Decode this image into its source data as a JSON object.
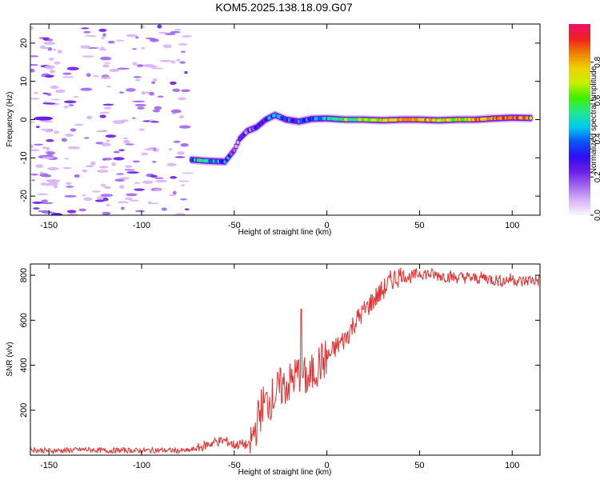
{
  "title": "KOM5.2025.138.18.09.G07",
  "chart_data": [
    {
      "type": "heatmap",
      "xlabel": "Height of straight line (km)",
      "ylabel": "Frequency (Hz)",
      "xlim": [
        -160,
        115
      ],
      "ylim": [
        -25,
        25
      ],
      "xticks": [
        -150,
        -100,
        -50,
        0,
        50,
        100
      ],
      "yticks": [
        -20,
        -10,
        0,
        10,
        20
      ],
      "colorbar": {
        "label": "Normalized spectral amplitude",
        "range": [
          0,
          1
        ],
        "ticks": [
          0.0,
          0.2,
          0.4,
          0.6,
          0.8
        ],
        "tick_labels": [
          "0.0",
          "0.2",
          "0.4",
          "0.6",
          "0.8"
        ],
        "colors": [
          "#f7f7ff",
          "#d9b3f7",
          "#a066f0",
          "#6b1ee6",
          "#2a0ff0",
          "#0a55f5",
          "#00ccf0",
          "#20e890",
          "#40f000",
          "#c8f000",
          "#f0d000",
          "#f08000",
          "#f02020",
          "#f0106a"
        ]
      },
      "ridge": {
        "description_points": [
          {
            "x": -73,
            "y": -10.5,
            "amp": 0.45
          },
          {
            "x": -65,
            "y": -10.8,
            "amp": 0.5
          },
          {
            "x": -55,
            "y": -11,
            "amp": 0.4
          },
          {
            "x": -50,
            "y": -8,
            "amp": 0.2
          },
          {
            "x": -47,
            "y": -5,
            "amp": 0.15
          },
          {
            "x": -43,
            "y": -3,
            "amp": 0.2
          },
          {
            "x": -38,
            "y": -2,
            "amp": 0.25
          },
          {
            "x": -33,
            "y": 0,
            "amp": 0.3
          },
          {
            "x": -28,
            "y": 1.2,
            "amp": 0.4
          },
          {
            "x": -22,
            "y": 0,
            "amp": 0.35
          },
          {
            "x": -15,
            "y": -0.5,
            "amp": 0.35
          },
          {
            "x": -8,
            "y": 0.2,
            "amp": 0.4
          },
          {
            "x": 0,
            "y": 0.3,
            "amp": 0.5
          },
          {
            "x": 10,
            "y": 0,
            "amp": 0.55
          },
          {
            "x": 20,
            "y": 0,
            "amp": 0.7
          },
          {
            "x": 30,
            "y": -0.2,
            "amp": 0.75
          },
          {
            "x": 40,
            "y": 0,
            "amp": 0.8
          },
          {
            "x": 50,
            "y": 0,
            "amp": 0.8
          },
          {
            "x": 60,
            "y": -0.2,
            "amp": 0.75
          },
          {
            "x": 70,
            "y": 0,
            "amp": 0.7
          },
          {
            "x": 80,
            "y": 0,
            "amp": 0.8
          },
          {
            "x": 90,
            "y": 0.3,
            "amp": 0.85
          },
          {
            "x": 100,
            "y": 0.5,
            "amp": 0.9
          },
          {
            "x": 110,
            "y": 0.4,
            "amp": 0.85
          }
        ]
      },
      "noise_region_x": [
        -160,
        -75
      ]
    },
    {
      "type": "line",
      "xlabel": "Height of straight line (km)",
      "ylabel": "SNR (v/v)",
      "xlim": [
        -160,
        115
      ],
      "ylim": [
        0,
        850
      ],
      "xticks": [
        -150,
        -100,
        -50,
        0,
        50,
        100
      ],
      "yticks": [
        200,
        400,
        600,
        800
      ],
      "line_color": "#e83030",
      "series": [
        {
          "x": [
            -160,
            -150,
            -140,
            -130,
            -120,
            -110,
            -100,
            -90,
            -80,
            -75,
            -70,
            -65,
            -60,
            -55,
            -50,
            -45,
            -42,
            -40,
            -35,
            -30,
            -25,
            -20,
            -15,
            -10,
            -5,
            0,
            5,
            10,
            15,
            20,
            25,
            30,
            35,
            40,
            45,
            50,
            55,
            60,
            65,
            70,
            75,
            80,
            85,
            90,
            95,
            100,
            105,
            110,
            115
          ],
          "y": [
            25,
            20,
            22,
            25,
            20,
            22,
            20,
            22,
            20,
            20,
            30,
            45,
            60,
            65,
            45,
            50,
            40,
            80,
            220,
            250,
            300,
            320,
            370,
            330,
            400,
            430,
            480,
            520,
            590,
            640,
            690,
            730,
            780,
            800,
            790,
            810,
            805,
            800,
            795,
            790,
            790,
            785,
            790,
            780,
            775,
            785,
            770,
            780,
            775
          ]
        }
      ],
      "annotations": [
        {
          "x": -14,
          "y": 650
        }
      ]
    }
  ]
}
